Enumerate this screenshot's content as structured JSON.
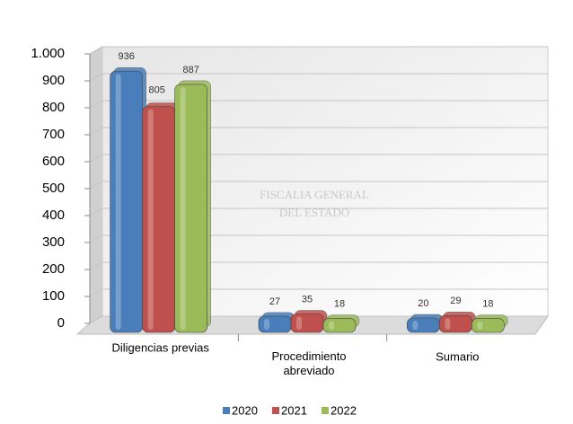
{
  "chart_data": {
    "type": "bar",
    "categories": [
      "Diligencias previas",
      "Procedimiento abreviado",
      "Sumario"
    ],
    "series": [
      {
        "name": "2020",
        "color": "#4a7ebb",
        "values": [
          936,
          27,
          20
        ]
      },
      {
        "name": "2021",
        "color": "#c0504d",
        "values": [
          805,
          35,
          29
        ]
      },
      {
        "name": "2022",
        "color": "#9bbb59",
        "values": [
          887,
          18,
          18
        ]
      }
    ],
    "ylim": [
      0,
      1000
    ],
    "yticks": [
      0,
      100,
      200,
      300,
      400,
      500,
      600,
      700,
      800,
      900,
      {
        "value": 1000,
        "label": "1.000"
      }
    ],
    "grid": true,
    "legend": "bottom",
    "watermark": [
      "FISCALIA GENERAL",
      "DEL ESTADO"
    ]
  }
}
